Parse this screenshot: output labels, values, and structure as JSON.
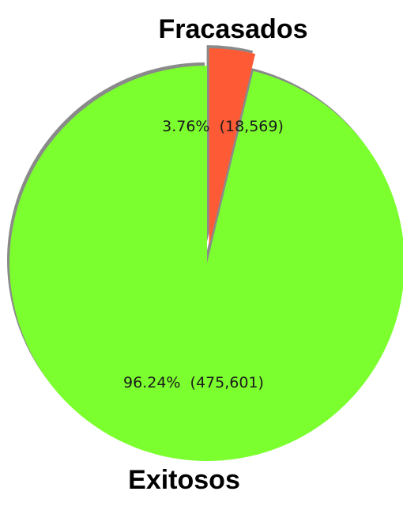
{
  "chart_data": {
    "type": "pie",
    "start_angle_deg": 0,
    "direction": "clockwise",
    "slices": [
      {
        "name": "Fracasados",
        "value": 18569,
        "percent_label": "3.76%",
        "count_label": "(18,569)",
        "color": "#ff5a36",
        "exploded": true
      },
      {
        "name": "Exitosos",
        "value": 475601,
        "percent_label": "96.24%",
        "count_label": "(475,601)",
        "color": "#7cff2f",
        "exploded": false
      }
    ],
    "shadow": true
  }
}
